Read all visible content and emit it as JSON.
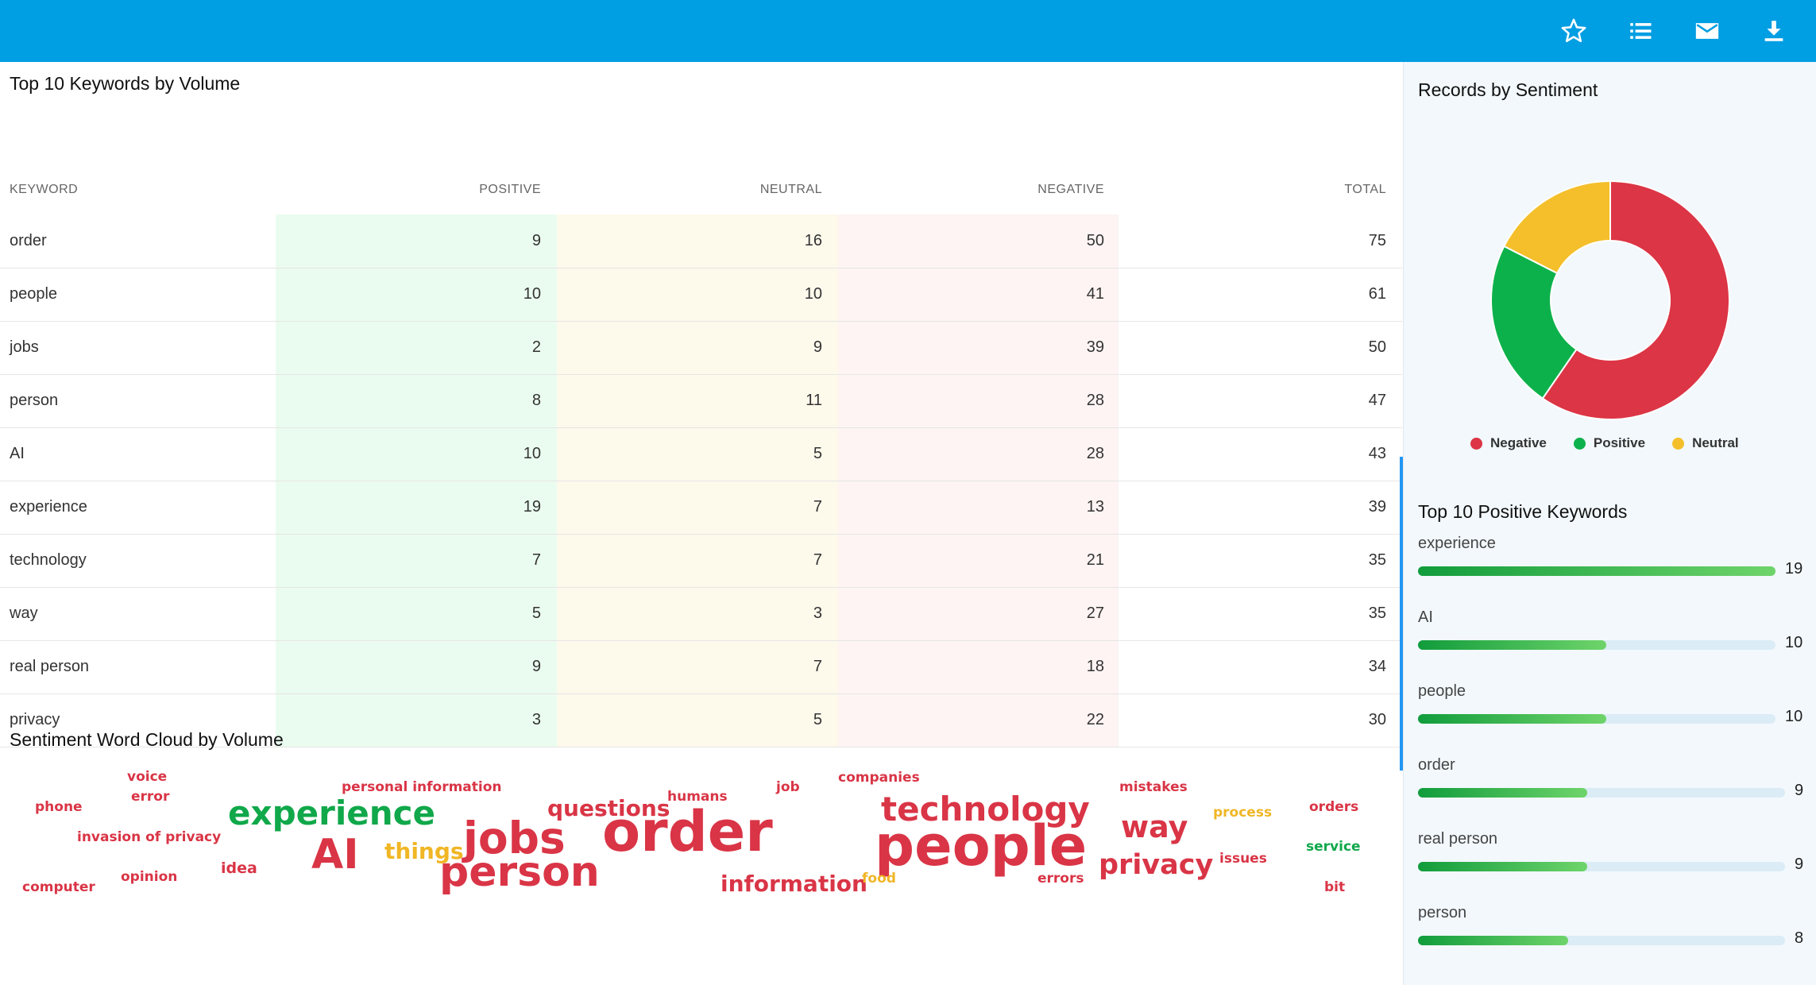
{
  "toolbar": {
    "icons": [
      "star-icon",
      "list-icon",
      "mail-icon",
      "download-icon"
    ]
  },
  "keywords_table": {
    "title": "Top 10 Keywords by Volume",
    "headers": {
      "keyword": "KEYWORD",
      "positive": "POSITIVE",
      "neutral": "NEUTRAL",
      "negative": "NEGATIVE",
      "total": "TOTAL"
    },
    "rows": [
      {
        "keyword": "order",
        "positive": "9",
        "neutral": "16",
        "negative": "50",
        "total": "75"
      },
      {
        "keyword": "people",
        "positive": "10",
        "neutral": "10",
        "negative": "41",
        "total": "61"
      },
      {
        "keyword": "jobs",
        "positive": "2",
        "neutral": "9",
        "negative": "39",
        "total": "50"
      },
      {
        "keyword": "person",
        "positive": "8",
        "neutral": "11",
        "negative": "28",
        "total": "47"
      },
      {
        "keyword": "AI",
        "positive": "10",
        "neutral": "5",
        "negative": "28",
        "total": "43"
      },
      {
        "keyword": "experience",
        "positive": "19",
        "neutral": "7",
        "negative": "13",
        "total": "39"
      },
      {
        "keyword": "technology",
        "positive": "7",
        "neutral": "7",
        "negative": "21",
        "total": "35"
      },
      {
        "keyword": "way",
        "positive": "5",
        "neutral": "3",
        "negative": "27",
        "total": "35"
      },
      {
        "keyword": "real person",
        "positive": "9",
        "neutral": "7",
        "negative": "18",
        "total": "34"
      },
      {
        "keyword": "privacy",
        "positive": "3",
        "neutral": "5",
        "negative": "22",
        "total": "30"
      }
    ]
  },
  "word_cloud": {
    "title": "Sentiment Word Cloud by Volume",
    "words": [
      {
        "text": "voice",
        "sentiment": "negative"
      },
      {
        "text": "error",
        "sentiment": "negative"
      },
      {
        "text": "phone",
        "sentiment": "negative"
      },
      {
        "text": "personal information",
        "sentiment": "negative"
      },
      {
        "text": "experience",
        "sentiment": "positive"
      },
      {
        "text": "invasion of privacy",
        "sentiment": "negative"
      },
      {
        "text": "things",
        "sentiment": "neutral"
      },
      {
        "text": "AI",
        "sentiment": "negative"
      },
      {
        "text": "jobs",
        "sentiment": "negative"
      },
      {
        "text": "idea",
        "sentiment": "negative"
      },
      {
        "text": "opinion",
        "sentiment": "negative"
      },
      {
        "text": "computer",
        "sentiment": "negative"
      },
      {
        "text": "questions",
        "sentiment": "negative"
      },
      {
        "text": "humans",
        "sentiment": "negative"
      },
      {
        "text": "person",
        "sentiment": "negative"
      },
      {
        "text": "order",
        "sentiment": "negative"
      },
      {
        "text": "job",
        "sentiment": "negative"
      },
      {
        "text": "companies",
        "sentiment": "negative"
      },
      {
        "text": "information",
        "sentiment": "negative"
      },
      {
        "text": "technology",
        "sentiment": "negative"
      },
      {
        "text": "people",
        "sentiment": "negative"
      },
      {
        "text": "food",
        "sentiment": "neutral"
      },
      {
        "text": "mistakes",
        "sentiment": "negative"
      },
      {
        "text": "way",
        "sentiment": "negative"
      },
      {
        "text": "privacy",
        "sentiment": "negative"
      },
      {
        "text": "errors",
        "sentiment": "negative"
      },
      {
        "text": "process",
        "sentiment": "neutral"
      },
      {
        "text": "issues",
        "sentiment": "negative"
      },
      {
        "text": "orders",
        "sentiment": "negative"
      },
      {
        "text": "service",
        "sentiment": "positive"
      },
      {
        "text": "bit",
        "sentiment": "negative"
      }
    ]
  },
  "sentiment_chart": {
    "title": "Records by Sentiment",
    "chart_data": {
      "type": "pie",
      "categories": [
        "Negative",
        "Positive",
        "Neutral"
      ],
      "values": [
        59.6,
        22.9,
        17.5
      ],
      "colors": [
        "#dc3545",
        "#0db14b",
        "#f4bf2a"
      ],
      "legend": "bottom"
    }
  },
  "positive_keywords": {
    "title": "Top 10 Positive Keywords",
    "max": 19,
    "items": [
      {
        "label": "experience",
        "value": "19"
      },
      {
        "label": "AI",
        "value": "10"
      },
      {
        "label": "people",
        "value": "10"
      },
      {
        "label": "order",
        "value": "9"
      },
      {
        "label": "real person",
        "value": "9"
      },
      {
        "label": "person",
        "value": "8"
      }
    ]
  }
}
